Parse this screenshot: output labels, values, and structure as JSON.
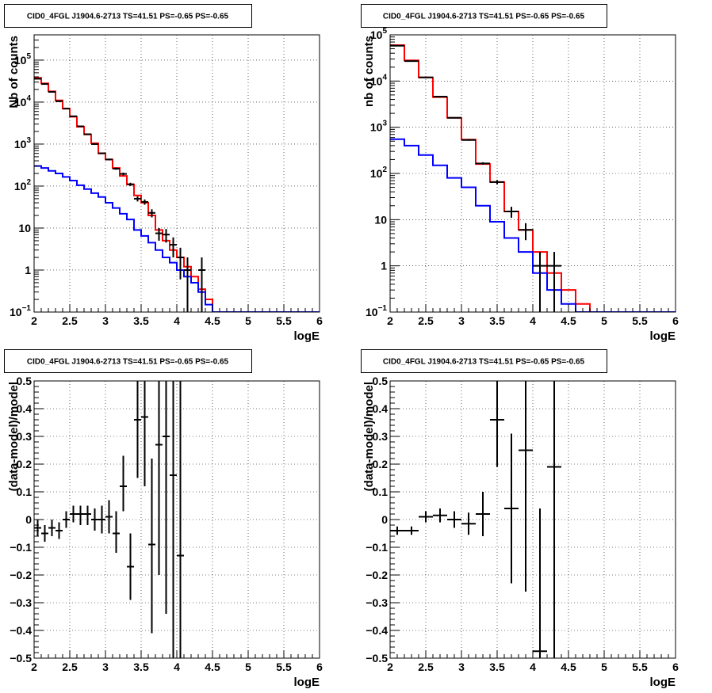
{
  "chart_data": [
    {
      "type": "line",
      "title": "CID0_4FGL J1904.6-2713 TS=41.51 PS=-0.65 PS=-0.65",
      "xlabel": "logE",
      "ylabel": "Nb of counts",
      "xlim": [
        2,
        6
      ],
      "ylim": [
        0.1,
        400000
      ],
      "yscale": "log",
      "grid": true,
      "x_ticks": [
        2,
        2.5,
        3,
        3.5,
        4,
        4.5,
        5,
        5.5,
        6
      ],
      "x_tick_labels": [
        "2",
        "2.5",
        "3",
        "3.5",
        "4",
        "4.5",
        "5",
        "5.5",
        "6"
      ],
      "y_tick_labels": [
        {
          "value": 0.1,
          "base": "10",
          "exp": "−1"
        },
        {
          "value": 1,
          "base": "1",
          "exp": ""
        },
        {
          "value": 10,
          "base": "10",
          "exp": ""
        },
        {
          "value": 100,
          "base": "10",
          "exp": "2"
        },
        {
          "value": 1000,
          "base": "10",
          "exp": "3"
        },
        {
          "value": 10000,
          "base": "10",
          "exp": "4"
        },
        {
          "value": 100000,
          "base": "10",
          "exp": "5"
        }
      ],
      "bin_edges": [
        2.0,
        2.1,
        2.2,
        2.3,
        2.4,
        2.5,
        2.6,
        2.7,
        2.8,
        2.9,
        3.0,
        3.1,
        3.2,
        3.3,
        3.4,
        3.5,
        3.6,
        3.7,
        3.8,
        3.9,
        4.0,
        4.1,
        4.2,
        4.3,
        4.4,
        4.5,
        4.6,
        4.7,
        4.8,
        4.9,
        5.0,
        5.1,
        5.2,
        5.3,
        5.4,
        5.5,
        5.6,
        5.7,
        5.8,
        5.9,
        6.0
      ],
      "series": [
        {
          "kind": "histogram",
          "color": "#ff0000",
          "values": [
            38000,
            28000,
            18000,
            11000,
            7000,
            4500,
            2600,
            1700,
            1050,
            600,
            430,
            270,
            175,
            110,
            60,
            40,
            20,
            9,
            5,
            3,
            2,
            1.2,
            0.7,
            0.35,
            0.2,
            0.1,
            0.1,
            0.1,
            0.1,
            0.1,
            0.1,
            0.1,
            0.1,
            0.1,
            0.1,
            0.1,
            0.1,
            0.1,
            0.1,
            0.1
          ]
        },
        {
          "kind": "histogram",
          "color": "#0000ff",
          "values": [
            300,
            270,
            230,
            200,
            165,
            135,
            105,
            85,
            68,
            55,
            40,
            30,
            22,
            16,
            9,
            6.5,
            4.5,
            3,
            2,
            1.5,
            1,
            0.7,
            0.5,
            0.3,
            0.15,
            0.1,
            0.1,
            0.1,
            0.1,
            0.1,
            0.1,
            0.1,
            0.1,
            0.1,
            0.1,
            0.1,
            0.1,
            0.1,
            0.1,
            0.1
          ]
        },
        {
          "kind": "points",
          "color": "#000000",
          "xerr": 0.05,
          "points": [
            {
              "x": 2.05,
              "y": 36000,
              "ylo": 35500,
              "yhi": 36500
            },
            {
              "x": 2.15,
              "y": 27000,
              "ylo": 26500,
              "yhi": 27500
            },
            {
              "x": 2.25,
              "y": 17500,
              "ylo": 17200,
              "yhi": 17800
            },
            {
              "x": 2.35,
              "y": 10500,
              "ylo": 10300,
              "yhi": 10700
            },
            {
              "x": 2.45,
              "y": 7000,
              "ylo": 6900,
              "yhi": 7100
            },
            {
              "x": 2.55,
              "y": 4600,
              "ylo": 4500,
              "yhi": 4700
            },
            {
              "x": 2.65,
              "y": 2650,
              "ylo": 2600,
              "yhi": 2700
            },
            {
              "x": 2.75,
              "y": 1720,
              "ylo": 1680,
              "yhi": 1760
            },
            {
              "x": 2.85,
              "y": 1000,
              "ylo": 970,
              "yhi": 1030
            },
            {
              "x": 2.95,
              "y": 605,
              "ylo": 580,
              "yhi": 630
            },
            {
              "x": 3.05,
              "y": 430,
              "ylo": 410,
              "yhi": 450
            },
            {
              "x": 3.15,
              "y": 260,
              "ylo": 245,
              "yhi": 275
            },
            {
              "x": 3.25,
              "y": 195,
              "ylo": 180,
              "yhi": 210
            },
            {
              "x": 3.35,
              "y": 110,
              "ylo": 100,
              "yhi": 120
            },
            {
              "x": 3.45,
              "y": 50,
              "ylo": 43,
              "yhi": 57
            },
            {
              "x": 3.55,
              "y": 42,
              "ylo": 36,
              "yhi": 48
            },
            {
              "x": 3.65,
              "y": 23,
              "ylo": 18,
              "yhi": 28
            },
            {
              "x": 3.75,
              "y": 7.5,
              "ylo": 5,
              "yhi": 10
            },
            {
              "x": 3.85,
              "y": 7,
              "ylo": 4.5,
              "yhi": 9.5
            },
            {
              "x": 3.95,
              "y": 4,
              "ylo": 2,
              "yhi": 6
            },
            {
              "x": 4.05,
              "y": 2,
              "ylo": 0.6,
              "yhi": 3.4
            },
            {
              "x": 4.15,
              "y": 1,
              "ylo": 0.1,
              "yhi": 2
            },
            {
              "x": 4.35,
              "y": 1,
              "ylo": 0.1,
              "yhi": 2
            }
          ]
        }
      ]
    },
    {
      "type": "line",
      "title": "CID0_4FGL J1904.6-2713 TS=41.51 PS=-0.65 PS=-0.65",
      "xlabel": "logE",
      "ylabel": "nb of counts",
      "xlim": [
        2,
        6
      ],
      "ylim": [
        0.1,
        100000
      ],
      "yscale": "log",
      "grid": true,
      "x_ticks": [
        2,
        2.5,
        3,
        3.5,
        4,
        4.5,
        5,
        5.5,
        6
      ],
      "x_tick_labels": [
        "2",
        "2.5",
        "3",
        "3.5",
        "4",
        "4.5",
        "5",
        "5.5",
        "6"
      ],
      "y_tick_labels": [
        {
          "value": 0.1,
          "base": "10",
          "exp": "−1"
        },
        {
          "value": 1,
          "base": "1",
          "exp": ""
        },
        {
          "value": 10,
          "base": "10",
          "exp": ""
        },
        {
          "value": 100,
          "base": "10",
          "exp": "2"
        },
        {
          "value": 1000,
          "base": "10",
          "exp": "3"
        },
        {
          "value": 10000,
          "base": "10",
          "exp": "4"
        },
        {
          "value": 100000,
          "base": "10",
          "exp": "5"
        }
      ],
      "bin_edges": [
        2.0,
        2.2,
        2.4,
        2.6,
        2.8,
        3.0,
        3.2,
        3.4,
        3.6,
        3.8,
        4.0,
        4.2,
        4.4,
        4.6,
        4.8,
        5.0,
        5.2,
        5.4,
        5.6,
        5.8,
        6.0
      ],
      "series": [
        {
          "kind": "histogram",
          "color": "#ff0000",
          "values": [
            60000,
            28000,
            12000,
            4500,
            1600,
            540,
            160,
            65,
            15,
            6,
            2,
            0.7,
            0.3,
            0.15,
            0.1,
            0.1,
            0.1,
            0.1,
            0.1,
            0.1
          ]
        },
        {
          "kind": "histogram",
          "color": "#0000ff",
          "values": [
            550,
            400,
            250,
            150,
            80,
            50,
            20,
            9,
            4,
            2,
            0.7,
            0.3,
            0.15,
            0.1,
            0.1,
            0.1,
            0.1,
            0.1,
            0.1,
            0.1
          ]
        },
        {
          "kind": "points",
          "color": "#000000",
          "xerr": 0.1,
          "points": [
            {
              "x": 2.1,
              "y": 58000,
              "ylo": 57500,
              "yhi": 58500
            },
            {
              "x": 2.3,
              "y": 27000,
              "ylo": 26700,
              "yhi": 27300
            },
            {
              "x": 2.5,
              "y": 12000,
              "ylo": 11800,
              "yhi": 12200
            },
            {
              "x": 2.7,
              "y": 4600,
              "ylo": 4500,
              "yhi": 4700
            },
            {
              "x": 2.9,
              "y": 1600,
              "ylo": 1550,
              "yhi": 1650
            },
            {
              "x": 3.1,
              "y": 530,
              "ylo": 510,
              "yhi": 550
            },
            {
              "x": 3.3,
              "y": 165,
              "ylo": 155,
              "yhi": 175
            },
            {
              "x": 3.5,
              "y": 65,
              "ylo": 58,
              "yhi": 72
            },
            {
              "x": 3.7,
              "y": 15,
              "ylo": 11,
              "yhi": 19
            },
            {
              "x": 3.9,
              "y": 6,
              "ylo": 3.6,
              "yhi": 8.4
            },
            {
              "x": 4.1,
              "y": 1,
              "ylo": 0.1,
              "yhi": 2
            },
            {
              "x": 4.3,
              "y": 1,
              "ylo": 0.1,
              "yhi": 2
            }
          ]
        }
      ]
    },
    {
      "type": "scatter",
      "title": "CID0_4FGL J1904.6-2713 TS=41.51 PS=-0.65 PS=-0.65",
      "xlabel": "logE",
      "ylabel": "(data-model)/model",
      "xlim": [
        2,
        6
      ],
      "ylim": [
        -0.5,
        0.5
      ],
      "grid": true,
      "x_ticks": [
        2,
        2.5,
        3,
        3.5,
        4,
        4.5,
        5,
        5.5,
        6
      ],
      "x_tick_labels": [
        "2",
        "2.5",
        "3",
        "3.5",
        "4",
        "4.5",
        "5",
        "5.5",
        "6"
      ],
      "y_ticks": [
        -0.5,
        -0.4,
        -0.3,
        -0.2,
        -0.1,
        0,
        0.1,
        0.2,
        0.3,
        0.4,
        0.5
      ],
      "y_tick_labels": [
        "−0.5",
        "−0.4",
        "−0.3",
        "−0.2",
        "−0.1",
        "0",
        "0.1",
        "0.2",
        "0.3",
        "0.4",
        "0.5"
      ],
      "series": [
        {
          "kind": "points",
          "color": "#000000",
          "xerr": 0.05,
          "points": [
            {
              "x": 2.05,
              "y": -0.03,
              "ylo": -0.06,
              "yhi": 0.0
            },
            {
              "x": 2.15,
              "y": -0.05,
              "ylo": -0.08,
              "yhi": -0.02
            },
            {
              "x": 2.25,
              "y": -0.03,
              "ylo": -0.06,
              "yhi": 0.0
            },
            {
              "x": 2.35,
              "y": -0.04,
              "ylo": -0.07,
              "yhi": -0.01
            },
            {
              "x": 2.45,
              "y": 0.0,
              "ylo": -0.03,
              "yhi": 0.03
            },
            {
              "x": 2.55,
              "y": 0.02,
              "ylo": -0.01,
              "yhi": 0.05
            },
            {
              "x": 2.65,
              "y": 0.02,
              "ylo": -0.02,
              "yhi": 0.05
            },
            {
              "x": 2.75,
              "y": 0.02,
              "ylo": -0.02,
              "yhi": 0.05
            },
            {
              "x": 2.85,
              "y": 0.0,
              "ylo": -0.04,
              "yhi": 0.04
            },
            {
              "x": 2.95,
              "y": 0.0,
              "ylo": -0.05,
              "yhi": 0.05
            },
            {
              "x": 3.05,
              "y": 0.01,
              "ylo": -0.05,
              "yhi": 0.07
            },
            {
              "x": 3.15,
              "y": -0.05,
              "ylo": -0.12,
              "yhi": 0.03
            },
            {
              "x": 3.25,
              "y": 0.12,
              "ylo": 0.03,
              "yhi": 0.23
            },
            {
              "x": 3.35,
              "y": -0.17,
              "ylo": -0.29,
              "yhi": -0.05
            },
            {
              "x": 3.45,
              "y": 0.36,
              "ylo": 0.15,
              "yhi": 0.5
            },
            {
              "x": 3.55,
              "y": 0.37,
              "ylo": 0.12,
              "yhi": 0.5
            },
            {
              "x": 3.65,
              "y": -0.09,
              "ylo": -0.41,
              "yhi": 0.22
            },
            {
              "x": 3.75,
              "y": 0.27,
              "ylo": -0.2,
              "yhi": 0.5
            },
            {
              "x": 3.85,
              "y": 0.3,
              "ylo": -0.34,
              "yhi": 0.5
            },
            {
              "x": 3.95,
              "y": 0.16,
              "ylo": -0.5,
              "yhi": 0.5
            },
            {
              "x": 4.05,
              "y": -0.13,
              "ylo": -0.5,
              "yhi": 0.5
            }
          ]
        }
      ]
    },
    {
      "type": "scatter",
      "title": "CID0_4FGL J1904.6-2713 TS=41.51 PS=-0.65 PS=-0.65",
      "xlabel": "logE",
      "ylabel": "(data-model)/model",
      "xlim": [
        2,
        6
      ],
      "ylim": [
        -0.5,
        0.5
      ],
      "grid": true,
      "x_ticks": [
        2,
        2.5,
        3,
        3.5,
        4,
        4.5,
        5,
        5.5,
        6
      ],
      "x_tick_labels": [
        "2",
        "2.5",
        "3",
        "3.5",
        "4",
        "4.5",
        "5",
        "5.5",
        "6"
      ],
      "y_ticks": [
        -0.5,
        -0.4,
        -0.3,
        -0.2,
        -0.1,
        0,
        0.1,
        0.2,
        0.3,
        0.4,
        0.5
      ],
      "y_tick_labels": [
        "−0.5",
        "−0.4",
        "−0.3",
        "−0.2",
        "−0.1",
        "0",
        "0.1",
        "0.2",
        "0.3",
        "0.4",
        "0.5"
      ],
      "series": [
        {
          "kind": "points",
          "color": "#000000",
          "xerr": 0.1,
          "points": [
            {
              "x": 2.1,
              "y": -0.04,
              "ylo": -0.055,
              "yhi": -0.025
            },
            {
              "x": 2.3,
              "y": -0.04,
              "ylo": -0.055,
              "yhi": -0.025
            },
            {
              "x": 2.5,
              "y": 0.01,
              "ylo": -0.01,
              "yhi": 0.03
            },
            {
              "x": 2.7,
              "y": 0.015,
              "ylo": -0.01,
              "yhi": 0.04
            },
            {
              "x": 2.9,
              "y": 0.0,
              "ylo": -0.03,
              "yhi": 0.03
            },
            {
              "x": 3.1,
              "y": -0.015,
              "ylo": -0.055,
              "yhi": 0.025
            },
            {
              "x": 3.3,
              "y": 0.02,
              "ylo": -0.06,
              "yhi": 0.1
            },
            {
              "x": 3.5,
              "y": 0.36,
              "ylo": 0.19,
              "yhi": 0.5
            },
            {
              "x": 3.7,
              "y": 0.04,
              "ylo": -0.23,
              "yhi": 0.31
            },
            {
              "x": 3.9,
              "y": 0.25,
              "ylo": -0.26,
              "yhi": 0.5
            },
            {
              "x": 4.1,
              "y": -0.475,
              "ylo": -0.5,
              "yhi": 0.04
            },
            {
              "x": 4.3,
              "y": 0.19,
              "ylo": -0.5,
              "yhi": 0.5
            }
          ]
        }
      ]
    }
  ]
}
